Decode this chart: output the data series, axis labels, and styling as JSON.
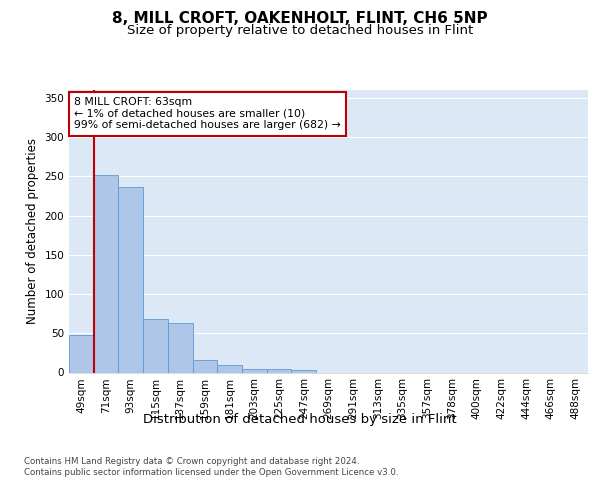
{
  "title": "8, MILL CROFT, OAKENHOLT, FLINT, CH6 5NP",
  "subtitle": "Size of property relative to detached houses in Flint",
  "xlabel": "Distribution of detached houses by size in Flint",
  "ylabel": "Number of detached properties",
  "categories": [
    "49sqm",
    "71sqm",
    "93sqm",
    "115sqm",
    "137sqm",
    "159sqm",
    "181sqm",
    "203sqm",
    "225sqm",
    "247sqm",
    "269sqm",
    "291sqm",
    "313sqm",
    "335sqm",
    "357sqm",
    "378sqm",
    "400sqm",
    "422sqm",
    "444sqm",
    "466sqm",
    "488sqm"
  ],
  "values": [
    48,
    252,
    236,
    68,
    63,
    16,
    9,
    5,
    4,
    3,
    0,
    0,
    0,
    0,
    0,
    0,
    0,
    0,
    0,
    0,
    0
  ],
  "bar_color": "#aec6e8",
  "bar_edge_color": "#5b9bd5",
  "highlight_line_color": "#c00000",
  "annotation_text": "8 MILL CROFT: 63sqm\n← 1% of detached houses are smaller (10)\n99% of semi-detached houses are larger (682) →",
  "annotation_box_color": "#ffffff",
  "annotation_box_edge_color": "#c00000",
  "ylim": [
    0,
    360
  ],
  "yticks": [
    0,
    50,
    100,
    150,
    200,
    250,
    300,
    350
  ],
  "plot_bg_color": "#dce8f5",
  "title_fontsize": 11,
  "subtitle_fontsize": 9.5,
  "xlabel_fontsize": 9.5,
  "ylabel_fontsize": 8.5,
  "footer_text": "Contains HM Land Registry data © Crown copyright and database right 2024.\nContains public sector information licensed under the Open Government Licence v3.0.",
  "grid_color": "#ffffff",
  "tick_fontsize": 7.5
}
